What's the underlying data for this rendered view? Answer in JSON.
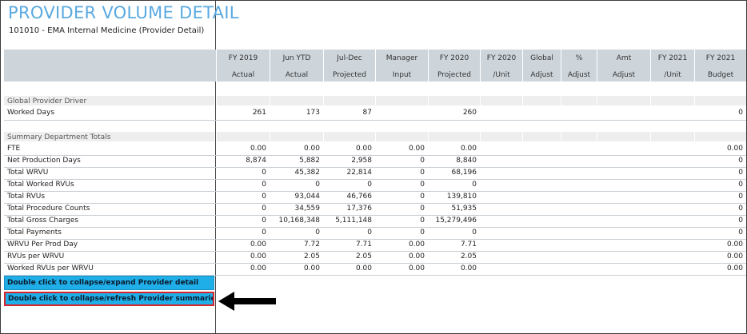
{
  "report": {
    "title": "PROVIDER VOLUME DETAIL",
    "subtitle": "101010 - EMA Internal Medicine (Provider Detail)"
  },
  "columns": [
    {
      "line1": "FY 2019",
      "line2": "Actual"
    },
    {
      "line1": "Jun YTD",
      "line2": "Actual"
    },
    {
      "line1": "Jul-Dec",
      "line2": "Projected"
    },
    {
      "line1": "Manager",
      "line2": "Input"
    },
    {
      "line1": "FY 2020",
      "line2": "Projected"
    },
    {
      "line1": "FY 2020",
      "line2": "/Unit"
    },
    {
      "line1": "Global",
      "line2": "Adjust"
    },
    {
      "line1": "%",
      "line2": "Adjust"
    },
    {
      "line1": "Amt",
      "line2": "Adjust"
    },
    {
      "line1": "FY 2021",
      "line2": "/Unit"
    },
    {
      "line1": "FY 2021",
      "line2": "Budget"
    }
  ],
  "sections": {
    "global_driver": "Global Provider Driver",
    "summary_totals": "Summary Department Totals"
  },
  "global_rows": [
    {
      "label": "Worked Days",
      "values": [
        "261",
        "173",
        "87",
        "",
        "260",
        "",
        "",
        "",
        "",
        "",
        "0"
      ]
    }
  ],
  "summary_rows": [
    {
      "label": "FTE",
      "values": [
        "0.00",
        "0.00",
        "0.00",
        "0.00",
        "0.00",
        "",
        "",
        "",
        "",
        "",
        "0.00"
      ]
    },
    {
      "label": "Net Production Days",
      "values": [
        "8,874",
        "5,882",
        "2,958",
        "0",
        "8,840",
        "",
        "",
        "",
        "",
        "",
        "0"
      ]
    },
    {
      "label": "Total WRVU",
      "values": [
        "0",
        "45,382",
        "22,814",
        "0",
        "68,196",
        "",
        "",
        "",
        "",
        "",
        "0"
      ]
    },
    {
      "label": "Total Worked RVUs",
      "values": [
        "0",
        "0",
        "0",
        "0",
        "0",
        "",
        "",
        "",
        "",
        "",
        "0"
      ]
    },
    {
      "label": "Total RVUs",
      "values": [
        "0",
        "93,044",
        "46,766",
        "0",
        "139,810",
        "",
        "",
        "",
        "",
        "",
        "0"
      ]
    },
    {
      "label": "Total Procedure Counts",
      "values": [
        "0",
        "34,559",
        "17,376",
        "0",
        "51,935",
        "",
        "",
        "",
        "",
        "",
        "0"
      ]
    },
    {
      "label": "Total Gross Charges",
      "values": [
        "0",
        "10,168,348",
        "5,111,148",
        "0",
        "15,279,496",
        "",
        "",
        "",
        "",
        "",
        "0"
      ]
    },
    {
      "label": "Total Payments",
      "values": [
        "0",
        "0",
        "0",
        "0",
        "0",
        "",
        "",
        "",
        "",
        "",
        "0"
      ]
    },
    {
      "label": "WRVU Per Prod Day",
      "values": [
        "0.00",
        "7.72",
        "7.71",
        "0.00",
        "7.71",
        "",
        "",
        "",
        "",
        "",
        "0.00"
      ]
    },
    {
      "label": "RVUs per WRVU",
      "values": [
        "0.00",
        "2.05",
        "2.05",
        "0.00",
        "2.05",
        "",
        "",
        "",
        "",
        "",
        "0.00"
      ]
    },
    {
      "label": "Worked RVUs per WRVU",
      "values": [
        "0.00",
        "0.00",
        "0.00",
        "0.00",
        "0.00",
        "",
        "",
        "",
        "",
        "",
        "0.00"
      ]
    }
  ],
  "buttons": {
    "expand_detail": "Double click to collapse/expand Provider detail",
    "refresh_summaries": "Double click to collapse/refresh Provider summaries"
  },
  "icons": {
    "arrow": "left-arrow-icon"
  },
  "colors": {
    "title": "#5aa9e0",
    "header_band": "#cdd5db",
    "button": "#1faee8",
    "highlight_border": "#d8262e"
  }
}
